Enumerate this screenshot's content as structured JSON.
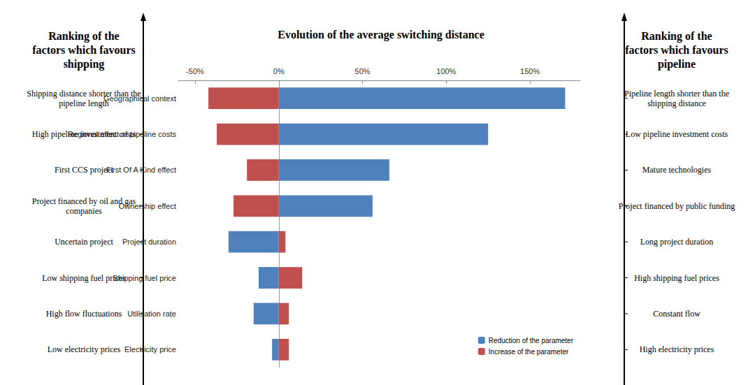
{
  "chart_data": {
    "type": "bar",
    "orientation": "horizontal",
    "title": "Evolution of the average switching distance",
    "categories": [
      "Geographical context",
      "Regional effect of pipeline costs",
      "First Of A Kind effect",
      "Ownership effect",
      "Project duration",
      "Shipping fuel price",
      "Utilisation rate",
      "Electricity price"
    ],
    "series": [
      {
        "name": "Reduction of the parameter",
        "color": "#4f81bd",
        "values": [
          171,
          125,
          66,
          56,
          -30,
          -12,
          -15,
          -4
        ]
      },
      {
        "name": "Increase of the parameter",
        "color": "#c0504d",
        "values": [
          -42,
          -37,
          -19,
          -27,
          4,
          14,
          6,
          6
        ]
      }
    ],
    "xlim": [
      -60,
      180
    ],
    "xticks": [
      {
        "value": -50,
        "label": "-50%"
      },
      {
        "value": 0,
        "label": "0%"
      },
      {
        "value": 50,
        "label": "50%"
      },
      {
        "value": 100,
        "label": "100%"
      },
      {
        "value": 150,
        "label": "150%"
      }
    ],
    "grid": false,
    "legend": "lower right",
    "annotations": {
      "left_title": "Ranking of the factors which favours shipping",
      "left_labels": [
        "Shipping distance shorter than the pipeline length",
        "High pipeline investment costs",
        "First  CCS project",
        "Project financed by oil and gas companies",
        "Uncertain project",
        "Low shipping fuel prices",
        "High flow fluctuations",
        "Low electricity prices"
      ],
      "right_title": "Ranking of the factors which favours pipeline",
      "right_labels": [
        "Pipeline length shorter than the shipping distance",
        "Low pipeline investment costs",
        "Mature technologies",
        "Project financed by public funding",
        "Long project duration",
        "High shipping fuel prices",
        "Constant flow",
        "High electricity prices"
      ]
    }
  }
}
